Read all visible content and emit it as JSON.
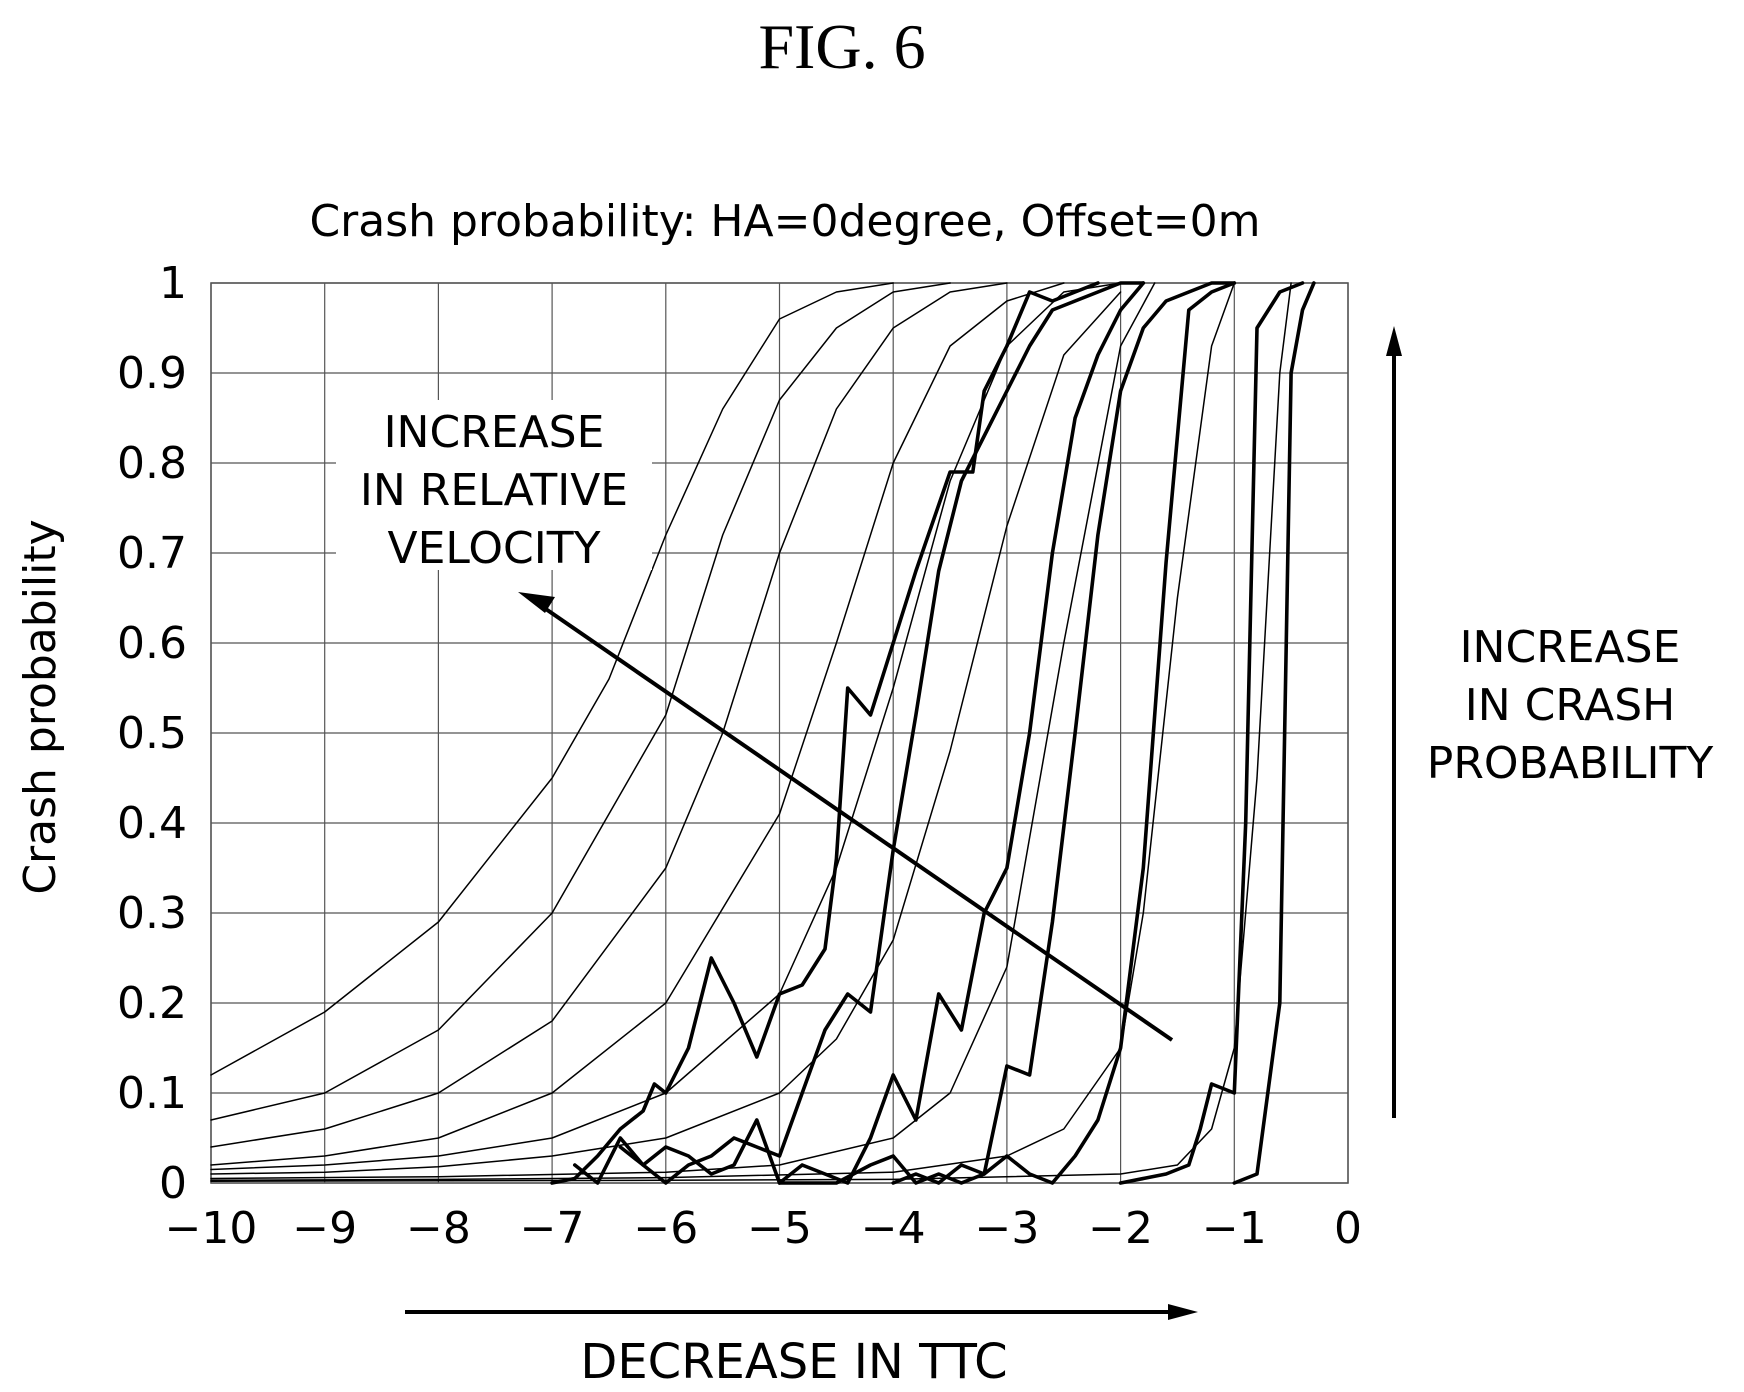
{
  "figure_label": "FIG. 6",
  "chart_data": {
    "type": "line",
    "title": "Crash probability: HA=0degree, Offset=0m",
    "xlabel": "DECREASE IN TTC",
    "ylabel": "Crash probability",
    "xlim": [
      -10,
      0
    ],
    "ylim": [
      0,
      1
    ],
    "xticks": [
      -10,
      -9,
      -8,
      -7,
      -6,
      -5,
      -4,
      -3,
      -2,
      -1,
      0
    ],
    "yticks": [
      0,
      0.1,
      0.2,
      0.3,
      0.4,
      0.5,
      0.6,
      0.7,
      0.8,
      0.9,
      1
    ],
    "xtick_labels": [
      "−10",
      "−9",
      "−8",
      "−7",
      "−6",
      "−5",
      "−4",
      "−3",
      "−2",
      "−1",
      "0"
    ],
    "ytick_labels": [
      "0",
      "0.1",
      "0.2",
      "0.3",
      "0.4",
      "0.5",
      "0.6",
      "0.7",
      "0.8",
      "0.9",
      "1"
    ],
    "grid": true,
    "annotations": [
      {
        "id": "velocity",
        "lines": [
          "INCREASE",
          "IN RELATIVE",
          "VELOCITY"
        ]
      },
      {
        "id": "probability",
        "lines": [
          "INCREASE",
          "IN CRASH",
          "PROBABILITY"
        ]
      }
    ],
    "series": [
      {
        "style": "thin",
        "x": [
          -10,
          -9,
          -8,
          -7,
          -6.5,
          -6,
          -5.5,
          -5,
          -4.5,
          -4
        ],
        "y": [
          0.12,
          0.19,
          0.29,
          0.45,
          0.56,
          0.72,
          0.86,
          0.96,
          0.99,
          1.0
        ]
      },
      {
        "style": "thin",
        "x": [
          -10,
          -9,
          -8,
          -7,
          -6,
          -5.5,
          -5,
          -4.5,
          -4,
          -3.5
        ],
        "y": [
          0.07,
          0.1,
          0.17,
          0.3,
          0.52,
          0.72,
          0.87,
          0.95,
          0.99,
          1.0
        ]
      },
      {
        "style": "thin",
        "x": [
          -10,
          -9,
          -8,
          -7,
          -6,
          -5.5,
          -5,
          -4.5,
          -4,
          -3.5,
          -3
        ],
        "y": [
          0.04,
          0.06,
          0.1,
          0.18,
          0.35,
          0.5,
          0.7,
          0.86,
          0.95,
          0.99,
          1.0
        ]
      },
      {
        "style": "thin",
        "x": [
          -10,
          -9,
          -8,
          -7,
          -6,
          -5,
          -4.5,
          -4,
          -3.5,
          -3,
          -2.5
        ],
        "y": [
          0.02,
          0.03,
          0.05,
          0.1,
          0.2,
          0.41,
          0.6,
          0.8,
          0.93,
          0.98,
          1.0
        ]
      },
      {
        "style": "thin",
        "x": [
          -10,
          -9,
          -8,
          -7,
          -6,
          -5,
          -4.5,
          -4,
          -3.5,
          -3,
          -2.5,
          -2
        ],
        "y": [
          0.015,
          0.02,
          0.03,
          0.05,
          0.1,
          0.21,
          0.35,
          0.55,
          0.78,
          0.93,
          0.99,
          1.0
        ]
      },
      {
        "style": "thin",
        "x": [
          -10,
          -9,
          -8,
          -7,
          -6,
          -5,
          -4.5,
          -4,
          -3.5,
          -3,
          -2.5,
          -2
        ],
        "y": [
          0.01,
          0.012,
          0.018,
          0.03,
          0.05,
          0.1,
          0.16,
          0.27,
          0.48,
          0.73,
          0.92,
          0.99
        ]
      },
      {
        "style": "thin",
        "x": [
          -10,
          -8,
          -6,
          -5,
          -4,
          -3.5,
          -3,
          -2.5,
          -2,
          -1.7
        ],
        "y": [
          0.005,
          0.007,
          0.012,
          0.02,
          0.05,
          0.1,
          0.24,
          0.6,
          0.93,
          1.0
        ]
      },
      {
        "style": "thin",
        "x": [
          -10,
          -8,
          -6,
          -4,
          -3,
          -2.5,
          -2,
          -1.8,
          -1.5,
          -1.2,
          -1
        ],
        "y": [
          0.003,
          0.004,
          0.006,
          0.012,
          0.03,
          0.06,
          0.15,
          0.3,
          0.65,
          0.93,
          1.0
        ]
      },
      {
        "style": "thin",
        "x": [
          -10,
          -6,
          -4,
          -2,
          -1.5,
          -1.2,
          -1,
          -0.8,
          -0.6,
          -0.5
        ],
        "y": [
          0.002,
          0.003,
          0.004,
          0.01,
          0.02,
          0.06,
          0.15,
          0.45,
          0.9,
          1.0
        ]
      },
      {
        "style": "bold",
        "x": [
          -7,
          -6.8,
          -6.6,
          -6.4,
          -6.2,
          -6.1,
          -6.0,
          -5.8,
          -5.6,
          -5.4,
          -5.2,
          -5.0,
          -4.8,
          -4.6,
          -4.5,
          -4.4,
          -4.2,
          -4.0,
          -3.8,
          -3.5,
          -3.3,
          -3.2,
          -3.0,
          -2.8,
          -2.6,
          -2.4,
          -2.2
        ],
        "y": [
          0.0,
          0.005,
          0.03,
          0.06,
          0.08,
          0.11,
          0.1,
          0.15,
          0.25,
          0.2,
          0.14,
          0.21,
          0.22,
          0.26,
          0.36,
          0.55,
          0.52,
          0.6,
          0.68,
          0.79,
          0.79,
          0.88,
          0.93,
          0.99,
          0.98,
          0.99,
          1.0
        ]
      },
      {
        "style": "bold",
        "x": [
          -6.8,
          -6.6,
          -6.4,
          -6.2,
          -6.0,
          -5.8,
          -5.6,
          -5.4,
          -5.2,
          -5.0,
          -4.8,
          -4.6,
          -4.4,
          -4.2,
          -4.0,
          -3.8,
          -3.6,
          -3.4,
          -3.2,
          -3.0,
          -2.8,
          -2.6,
          -2.4,
          -2.2,
          -2.0,
          -1.8
        ],
        "y": [
          0.02,
          0.0,
          0.05,
          0.02,
          0.0,
          0.02,
          0.03,
          0.05,
          0.04,
          0.03,
          0.1,
          0.17,
          0.21,
          0.19,
          0.37,
          0.52,
          0.68,
          0.78,
          0.83,
          0.88,
          0.93,
          0.97,
          0.98,
          0.99,
          1.0,
          1.0
        ]
      },
      {
        "style": "bold",
        "x": [
          -6.4,
          -6.2,
          -6.0,
          -5.8,
          -5.6,
          -5.4,
          -5.2,
          -5.0,
          -4.8,
          -4.6,
          -4.4,
          -4.2,
          -4.0,
          -3.8,
          -3.6,
          -3.4,
          -3.2,
          -3.0,
          -2.8,
          -2.6,
          -2.4,
          -2.2,
          -2.0,
          -1.8
        ],
        "y": [
          0.04,
          0.02,
          0.04,
          0.03,
          0.01,
          0.02,
          0.07,
          0.0,
          0.02,
          0.01,
          0.0,
          0.05,
          0.12,
          0.07,
          0.21,
          0.17,
          0.3,
          0.35,
          0.5,
          0.7,
          0.85,
          0.92,
          0.97,
          1.0
        ]
      },
      {
        "style": "bold",
        "x": [
          -5.0,
          -4.5,
          -4.2,
          -4.0,
          -3.8,
          -3.6,
          -3.4,
          -3.2,
          -3.0,
          -2.8,
          -2.6,
          -2.4,
          -2.2,
          -2.0,
          -1.8,
          -1.6,
          -1.4,
          -1.2,
          -1.0
        ],
        "y": [
          0.0,
          0.0,
          0.02,
          0.03,
          0.0,
          0.01,
          0.0,
          0.01,
          0.13,
          0.12,
          0.29,
          0.5,
          0.72,
          0.88,
          0.95,
          0.98,
          0.99,
          1.0,
          1.0
        ]
      },
      {
        "style": "bold",
        "x": [
          -4.0,
          -3.8,
          -3.6,
          -3.4,
          -3.2,
          -3.0,
          -2.8,
          -2.6,
          -2.4,
          -2.2,
          -2.0,
          -1.8,
          -1.6,
          -1.4,
          -1.2,
          -1.0
        ],
        "y": [
          0.0,
          0.01,
          0.0,
          0.02,
          0.01,
          0.03,
          0.01,
          0.0,
          0.03,
          0.07,
          0.15,
          0.35,
          0.69,
          0.97,
          0.99,
          1.0
        ]
      },
      {
        "style": "bold",
        "x": [
          -2.0,
          -1.6,
          -1.4,
          -1.3,
          -1.2,
          -1.0,
          -0.9,
          -0.8,
          -0.6,
          -0.4
        ],
        "y": [
          0.0,
          0.01,
          0.02,
          0.06,
          0.11,
          0.1,
          0.4,
          0.95,
          0.99,
          1.0
        ]
      },
      {
        "style": "bold",
        "x": [
          -1.0,
          -0.8,
          -0.6,
          -0.5,
          -0.4,
          -0.3
        ],
        "y": [
          0.0,
          0.01,
          0.2,
          0.9,
          0.97,
          1.0
        ]
      }
    ]
  }
}
